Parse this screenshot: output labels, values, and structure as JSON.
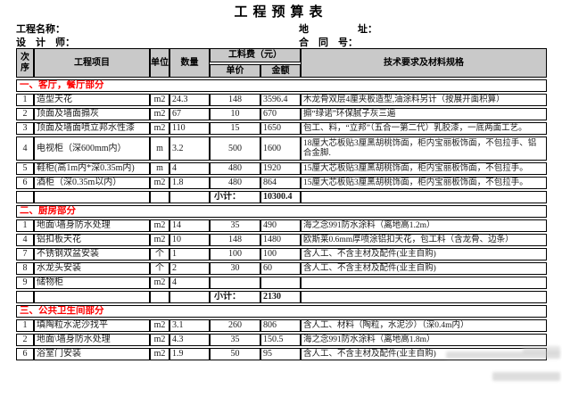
{
  "title": "工程预算表",
  "meta": {
    "project_name_label": "工程名称：",
    "address_label": "地　　　　　址：",
    "designer_label": "设　计　师：",
    "contract_label": "合　同　号："
  },
  "table": {
    "headers": {
      "seq": "次序",
      "item": "工程项目",
      "unit": "单位",
      "qty": "数量",
      "fee_group": "工料费（元）",
      "unit_price": "单价",
      "amount": "金额",
      "spec": "技术要求及材料规格"
    },
    "subtotal_label": "小计：",
    "sections": [
      {
        "name": "一、客厅，餐厅部分",
        "rows": [
          {
            "seq": "1",
            "item": "造型天花",
            "unit": "m2",
            "qty": "24.3",
            "price": "148",
            "amount": "3596.4",
            "spec": "木龙骨双层4厘夹板造型,油涂料另计（按展开面积算）"
          },
          {
            "seq": "2",
            "item": "顶面及墙面搧灰",
            "unit": "m2",
            "qty": "67",
            "price": "10",
            "amount": "670",
            "spec": "搧“绿诺”环保腻子灰三遍"
          },
          {
            "seq": "3",
            "item": "顶面及墙面喷立邦水性漆",
            "unit": "m2",
            "qty": "110",
            "price": "15",
            "amount": "1650",
            "spec": "包工、料，“立邦”（五合一第二代）乳胶漆，一底两面工艺。"
          },
          {
            "seq": "4",
            "item": "电视柜（深600mm内）",
            "unit": "m",
            "qty": "3.2",
            "price": "500",
            "amount": "1600",
            "spec": "18厘大芯板贴3厘黑胡桃饰面，柜内宝丽板饰面，不包拉手、铝合金脚.",
            "tall": true
          },
          {
            "seq": "5",
            "item": "鞋柜(高1m内*深0.35m内)",
            "unit": "m",
            "qty": "4",
            "price": "480",
            "amount": "1920",
            "spec": "15厘大芯板贴3厘黑胡桃饰面，柜内宝丽板饰面，不包拉手。"
          },
          {
            "seq": "6",
            "item": "酒柜（深0.35m以内）",
            "unit": "m2",
            "qty": "1.8",
            "price": "480",
            "amount": "864",
            "spec": "15厘大芯板贴3厘黑胡桃饰面，柜内宝丽板饰面，不包拉手。"
          }
        ],
        "subtotal": "10300.4"
      },
      {
        "name": "二、厨房部分",
        "rows": [
          {
            "seq": "1",
            "item": "地面\\墙身防水处理",
            "unit": "m2",
            "qty": "14",
            "price": "35",
            "amount": "490",
            "spec": "海之念991防水涂料（离地高1.2m）"
          },
          {
            "seq": "4",
            "item": "铝扣板天花",
            "unit": "m2",
            "qty": "10",
            "price": "148",
            "amount": "1480",
            "spec": "欧斯莱0.6mm厚喷涂铝扣天花，包工料（含龙骨、边条）"
          },
          {
            "seq": "7",
            "item": "不锈钢双盆安装",
            "unit": "个",
            "qty": "1",
            "price": "100",
            "amount": "100",
            "spec": "含人工、不含主材及配件(业主自购)"
          },
          {
            "seq": "8",
            "item": "水龙头安装",
            "unit": "个",
            "qty": "2",
            "price": "30",
            "amount": "60",
            "spec": "含人工、不含主材及配件(业主自购)"
          },
          {
            "seq": "9",
            "item": "储物柜",
            "unit": "m2",
            "qty": "4",
            "price": "",
            "amount": "",
            "spec": ""
          }
        ],
        "subtotal": "2130"
      },
      {
        "name": "三、公共卫生间部分",
        "rows": [
          {
            "seq": "1",
            "item": "填陶粒水泥沙找平",
            "unit": "m2",
            "qty": "3.1",
            "price": "260",
            "amount": "806",
            "spec": "含人工、材料（陶粒，水泥沙）（深0.4m内）"
          },
          {
            "seq": "2",
            "item": "地面\\墙身防水处理",
            "unit": "m2",
            "qty": "4.3",
            "price": "35",
            "amount": "150.5",
            "spec": "海之念991防水涂料（离地高1.8m）"
          },
          {
            "seq": "6",
            "item": "浴室门安装",
            "unit": "m2",
            "qty": "1.9",
            "price": "50",
            "amount": "95",
            "spec": "含人工、不含主材及配件(业主自购)"
          }
        ],
        "subtotal": null
      }
    ]
  },
  "colors": {
    "header_bg": "#C9C9C9",
    "highlight": "#FFFF99",
    "section_text": "#FF0000",
    "border": "#000000",
    "text": "#1a1a1a"
  }
}
